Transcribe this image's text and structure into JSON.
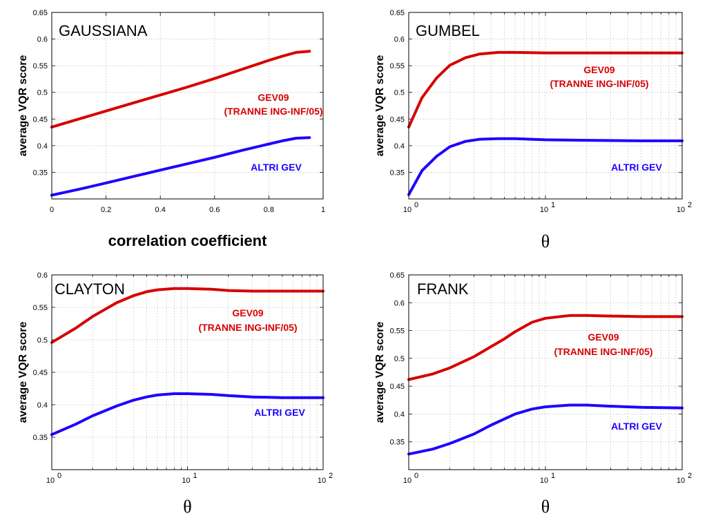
{
  "colors": {
    "gev09": "#d60000",
    "altri": "#1f00ff"
  },
  "chart_data": [
    {
      "id": "gaussiana",
      "type": "line",
      "title": "GAUSSIANA",
      "xlabel": "correlation coefficient",
      "ylabel": "average VQR score",
      "xscale": "linear",
      "xlim": [
        0,
        1
      ],
      "ylim": [
        0.3,
        0.65
      ],
      "xticks": [
        0,
        0.2,
        0.4,
        0.6,
        0.8,
        1
      ],
      "xtick_labels": [
        "0",
        "0.2",
        "0.4",
        "0.6",
        "0.8",
        "1"
      ],
      "yticks": [
        0.35,
        0.4,
        0.45,
        0.5,
        0.55,
        0.6,
        0.65
      ],
      "ytick_labels": [
        "0.35",
        "0.4",
        "0.45",
        "0.5",
        "0.55",
        "0.6",
        "0.65"
      ],
      "grid": true,
      "series": [
        {
          "key": "gev09",
          "annotation": [
            "GEV09",
            "(TRANNE ING-INF/05)"
          ],
          "x": [
            0,
            0.1,
            0.2,
            0.3,
            0.4,
            0.5,
            0.6,
            0.7,
            0.8,
            0.85,
            0.9,
            0.95
          ],
          "y": [
            0.435,
            0.45,
            0.465,
            0.48,
            0.495,
            0.51,
            0.526,
            0.543,
            0.56,
            0.568,
            0.575,
            0.577
          ]
        },
        {
          "key": "altri",
          "annotation": [
            "ALTRI GEV"
          ],
          "x": [
            0,
            0.1,
            0.2,
            0.3,
            0.4,
            0.5,
            0.6,
            0.7,
            0.8,
            0.85,
            0.9,
            0.95
          ],
          "y": [
            0.307,
            0.318,
            0.33,
            0.342,
            0.354,
            0.366,
            0.378,
            0.391,
            0.403,
            0.409,
            0.414,
            0.415
          ]
        }
      ]
    },
    {
      "id": "gumbel",
      "type": "line",
      "title": "GUMBEL",
      "xlabel": "θ",
      "ylabel": "average VQR score",
      "xscale": "log",
      "xlim": [
        1,
        100
      ],
      "ylim": [
        0.3,
        0.65
      ],
      "xticks": [
        1,
        10,
        100
      ],
      "xtick_labels": [
        [
          "10",
          "0"
        ],
        [
          "10",
          "1"
        ],
        [
          "10",
          "2"
        ]
      ],
      "yticks": [
        0.35,
        0.4,
        0.45,
        0.5,
        0.55,
        0.6,
        0.65
      ],
      "ytick_labels": [
        "0.35",
        "0.4",
        "0.45",
        "0.5",
        "0.55",
        "0.6",
        "0.65"
      ],
      "grid": true,
      "series": [
        {
          "key": "gev09",
          "annotation": [
            "GEV09",
            "(TRANNE ING-INF/05)"
          ],
          "x": [
            1,
            1.25,
            1.6,
            2,
            2.6,
            3.3,
            4.5,
            6,
            10,
            20,
            50,
            100
          ],
          "y": [
            0.435,
            0.49,
            0.527,
            0.551,
            0.565,
            0.572,
            0.575,
            0.575,
            0.574,
            0.574,
            0.574,
            0.574
          ]
        },
        {
          "key": "altri",
          "annotation": [
            "ALTRI GEV"
          ],
          "x": [
            1,
            1.25,
            1.6,
            2,
            2.6,
            3.3,
            4.5,
            6,
            10,
            20,
            50,
            100
          ],
          "y": [
            0.308,
            0.353,
            0.38,
            0.398,
            0.408,
            0.412,
            0.413,
            0.413,
            0.411,
            0.41,
            0.409,
            0.409
          ]
        }
      ]
    },
    {
      "id": "clayton",
      "type": "line",
      "title": "CLAYTON",
      "xlabel": "θ",
      "ylabel": "average VQR score",
      "xscale": "log",
      "xlim": [
        1,
        100
      ],
      "ylim": [
        0.3,
        0.6
      ],
      "xticks": [
        1,
        10,
        100
      ],
      "xtick_labels": [
        [
          "10",
          "0"
        ],
        [
          "10",
          "1"
        ],
        [
          "10",
          "2"
        ]
      ],
      "yticks": [
        0.35,
        0.4,
        0.45,
        0.5,
        0.55,
        0.6
      ],
      "ytick_labels": [
        "0.35",
        "0.4",
        "0.45",
        "0.5",
        "0.55",
        "0.6"
      ],
      "grid": true,
      "series": [
        {
          "key": "gev09",
          "annotation": [
            "GEV09",
            "(TRANNE ING-INF/05)"
          ],
          "x": [
            1,
            1.5,
            2,
            3,
            4,
            5,
            6,
            8,
            10,
            15,
            20,
            30,
            50,
            100
          ],
          "y": [
            0.496,
            0.518,
            0.536,
            0.557,
            0.568,
            0.574,
            0.577,
            0.579,
            0.579,
            0.578,
            0.576,
            0.575,
            0.575,
            0.575
          ]
        },
        {
          "key": "altri",
          "annotation": [
            "ALTRI GEV"
          ],
          "x": [
            1,
            1.5,
            2,
            3,
            4,
            5,
            6,
            8,
            10,
            15,
            20,
            30,
            50,
            100
          ],
          "y": [
            0.354,
            0.37,
            0.383,
            0.398,
            0.407,
            0.412,
            0.415,
            0.417,
            0.417,
            0.416,
            0.414,
            0.412,
            0.411,
            0.411
          ]
        }
      ]
    },
    {
      "id": "frank",
      "type": "line",
      "title": "FRANK",
      "xlabel": "θ",
      "ylabel": "average VQR score",
      "xscale": "log",
      "xlim": [
        1,
        100
      ],
      "ylim": [
        0.3,
        0.65
      ],
      "xticks": [
        1,
        10,
        100
      ],
      "xtick_labels": [
        [
          "10",
          "0"
        ],
        [
          "10",
          "1"
        ],
        [
          "10",
          "2"
        ]
      ],
      "yticks": [
        0.35,
        0.4,
        0.45,
        0.5,
        0.55,
        0.6,
        0.65
      ],
      "ytick_labels": [
        "0.35",
        "0.4",
        "0.45",
        "0.5",
        "0.55",
        "0.6",
        "0.65"
      ],
      "grid": true,
      "series": [
        {
          "key": "gev09",
          "annotation": [
            "GEV09",
            "(TRANNE ING-INF/05)"
          ],
          "x": [
            1,
            1.5,
            2,
            3,
            4,
            5,
            6,
            8,
            10,
            15,
            20,
            30,
            50,
            100
          ],
          "y": [
            0.462,
            0.472,
            0.483,
            0.503,
            0.521,
            0.535,
            0.548,
            0.565,
            0.572,
            0.577,
            0.577,
            0.576,
            0.575,
            0.575
          ]
        },
        {
          "key": "altri",
          "annotation": [
            "ALTRI GEV"
          ],
          "x": [
            1,
            1.5,
            2,
            3,
            4,
            5,
            6,
            8,
            10,
            15,
            20,
            30,
            50,
            100
          ],
          "y": [
            0.328,
            0.337,
            0.347,
            0.364,
            0.38,
            0.391,
            0.4,
            0.409,
            0.413,
            0.416,
            0.416,
            0.414,
            0.412,
            0.411
          ]
        }
      ]
    }
  ]
}
